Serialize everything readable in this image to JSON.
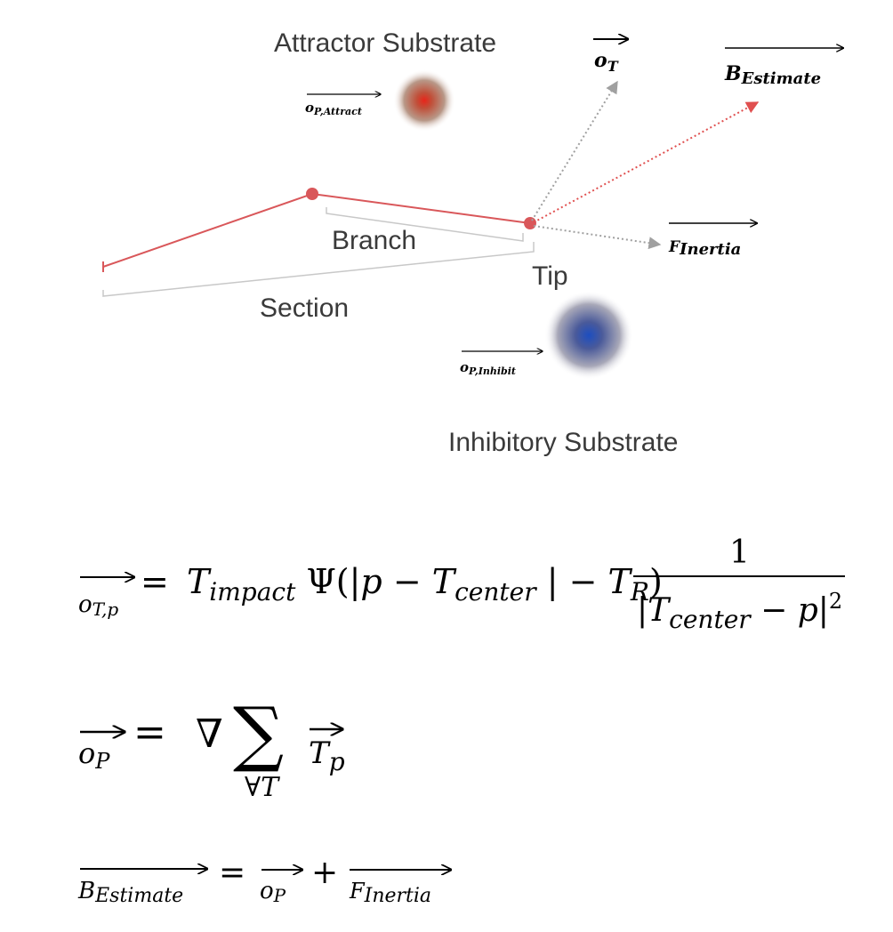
{
  "diagram": {
    "labels": {
      "attractor": "Attractor Substrate",
      "inhibitory": "Inhibitory Substrate",
      "branch": "Branch",
      "section": "Section",
      "tip": "Tip"
    },
    "vectors": {
      "op_attract_base": "o",
      "op_attract_sub": "P,Attract",
      "op_inhibit_base": "o",
      "op_inhibit_sub": "P,Inhibit",
      "ot_base": "o",
      "ot_sub": "T",
      "b_est_base": "B",
      "b_est_sub": "Estimate",
      "f_inertia_base": "F",
      "f_inertia_sub": "Inertia"
    },
    "colors": {
      "branch": "#d9575a",
      "guide": "#c8c8c8",
      "dotted": "#a0a0a0",
      "estimate": "#e05050",
      "attractor": "#e03a2a",
      "inhibitor": "#2a4fb0"
    }
  },
  "equations": {
    "eq1": {
      "lhs_base": "o",
      "lhs_sub": "T,p",
      "equals": "=",
      "t_impact_base": "T",
      "t_impact_sub": "impact",
      "psi": "Ψ(|",
      "p1": "p",
      "minus1": "−",
      "t_center_base": "T",
      "t_center_sub": "center",
      "bar_minus": "| −",
      "t_r_base": "T",
      "t_r_sub": "R",
      "close": ")",
      "numerator": "1",
      "den_open": "|",
      "den_t_base": "T",
      "den_t_sub": "center",
      "den_minus": "−",
      "den_p": "p",
      "den_close": "|",
      "den_exp": "2"
    },
    "eq2": {
      "lhs_base": "o",
      "lhs_sub": "P",
      "equals": "=",
      "nabla": "∇",
      "sum": "∑",
      "sum_under": "∀T",
      "rhs_base": "T",
      "rhs_sub": "p"
    },
    "eq3": {
      "lhs_base": "B",
      "lhs_sub": "Estimate",
      "equals": "=",
      "op_base": "o",
      "op_sub": "P",
      "plus": "+",
      "f_base": "F",
      "f_sub": "Inertia"
    }
  }
}
